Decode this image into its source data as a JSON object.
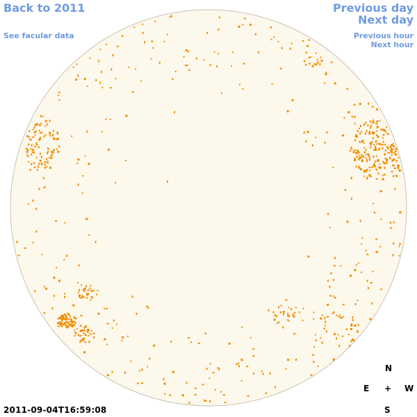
{
  "nav": {
    "back_to_year": "Back to 2011",
    "see_facular_data": "See facular data",
    "previous_day": "Previous day",
    "next_day": "Next day",
    "previous_hour": "Previous hour",
    "next_hour": "Next hour"
  },
  "timestamp": "2011-09-04T16:59:08",
  "compass": {
    "north": "N",
    "south": "S",
    "east": "E",
    "west": "W",
    "center": "+"
  },
  "colors": {
    "disk_fill": "#fdf8ec",
    "disk_stroke": "#c9c1b3",
    "facula": "#f08c00",
    "link": "#6f9be0"
  }
}
